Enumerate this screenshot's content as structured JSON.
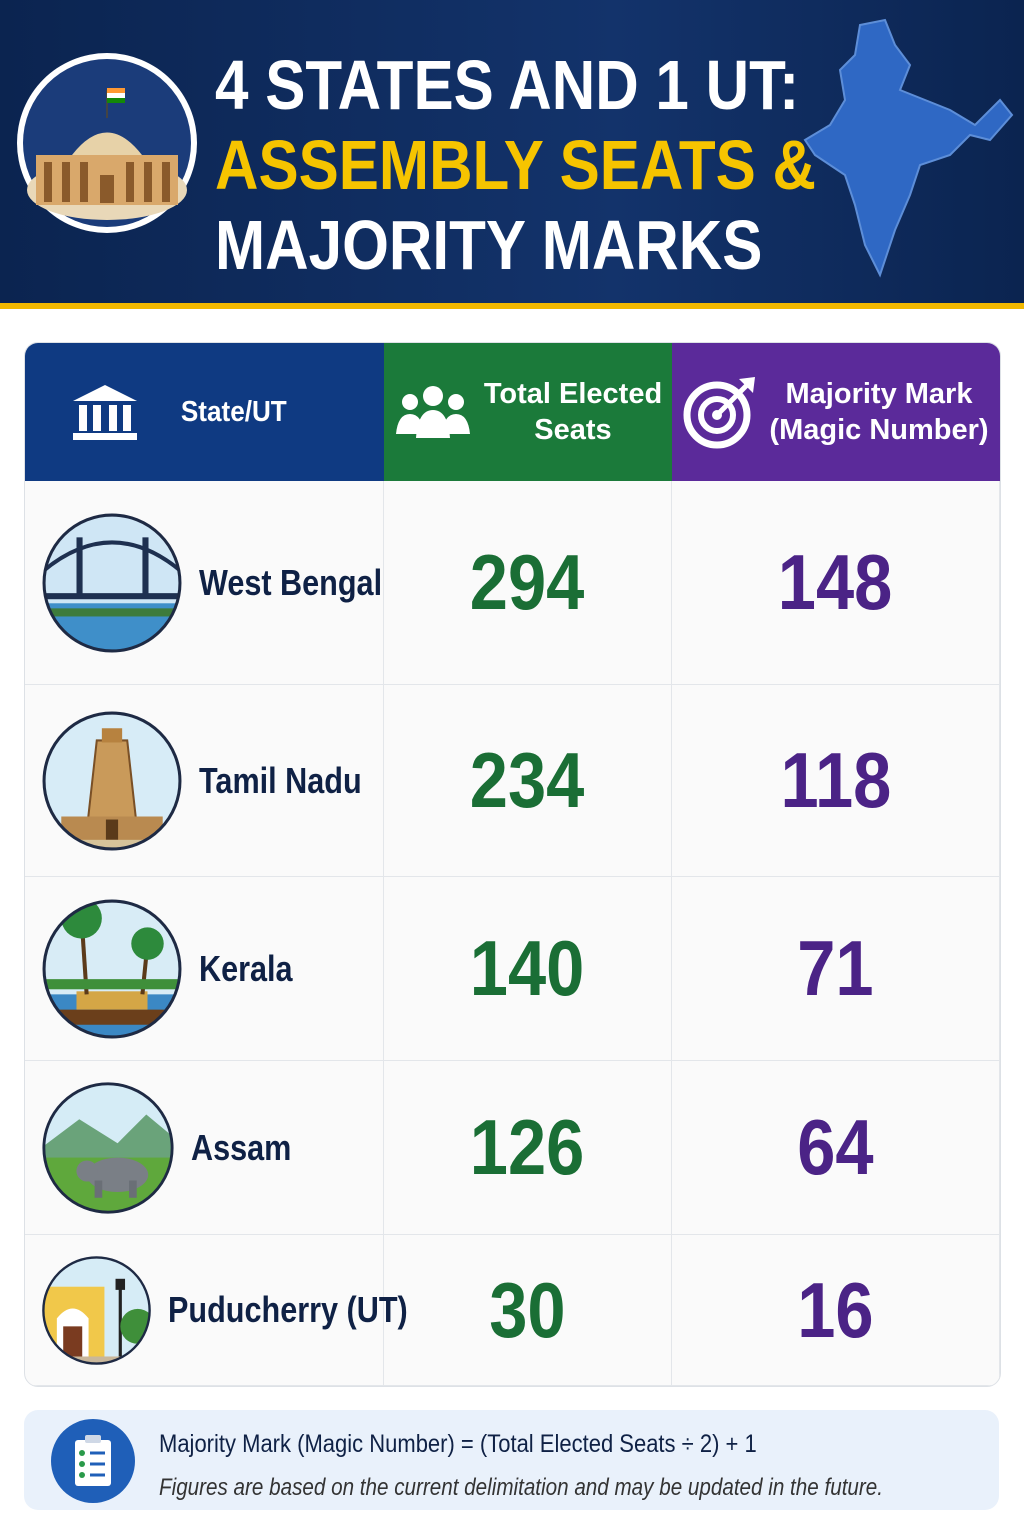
{
  "header": {
    "title_lines": [
      "4 STATES AND 1 UT:",
      "ASSEMBLY SEATS &",
      "MAJORITY MARKS"
    ]
  },
  "table": {
    "columns": [
      [
        "State/UT"
      ],
      [
        "Total Elected",
        "Seats"
      ],
      [
        "Majority Mark",
        "(Magic Number)"
      ]
    ],
    "rows": [
      [
        "West Bengal",
        294,
        148
      ],
      [
        "Tamil Nadu",
        234,
        118
      ],
      [
        "Kerala",
        140,
        71
      ],
      [
        "Assam",
        126,
        64
      ],
      [
        "Puducherry (UT)",
        30,
        16
      ]
    ]
  },
  "footer": {
    "formula": "Majority Mark (Magic Number) = (Total Elected Seats ÷ 2) + 1",
    "note": "Figures are based on the current delimitation and may be updated in the future."
  }
}
